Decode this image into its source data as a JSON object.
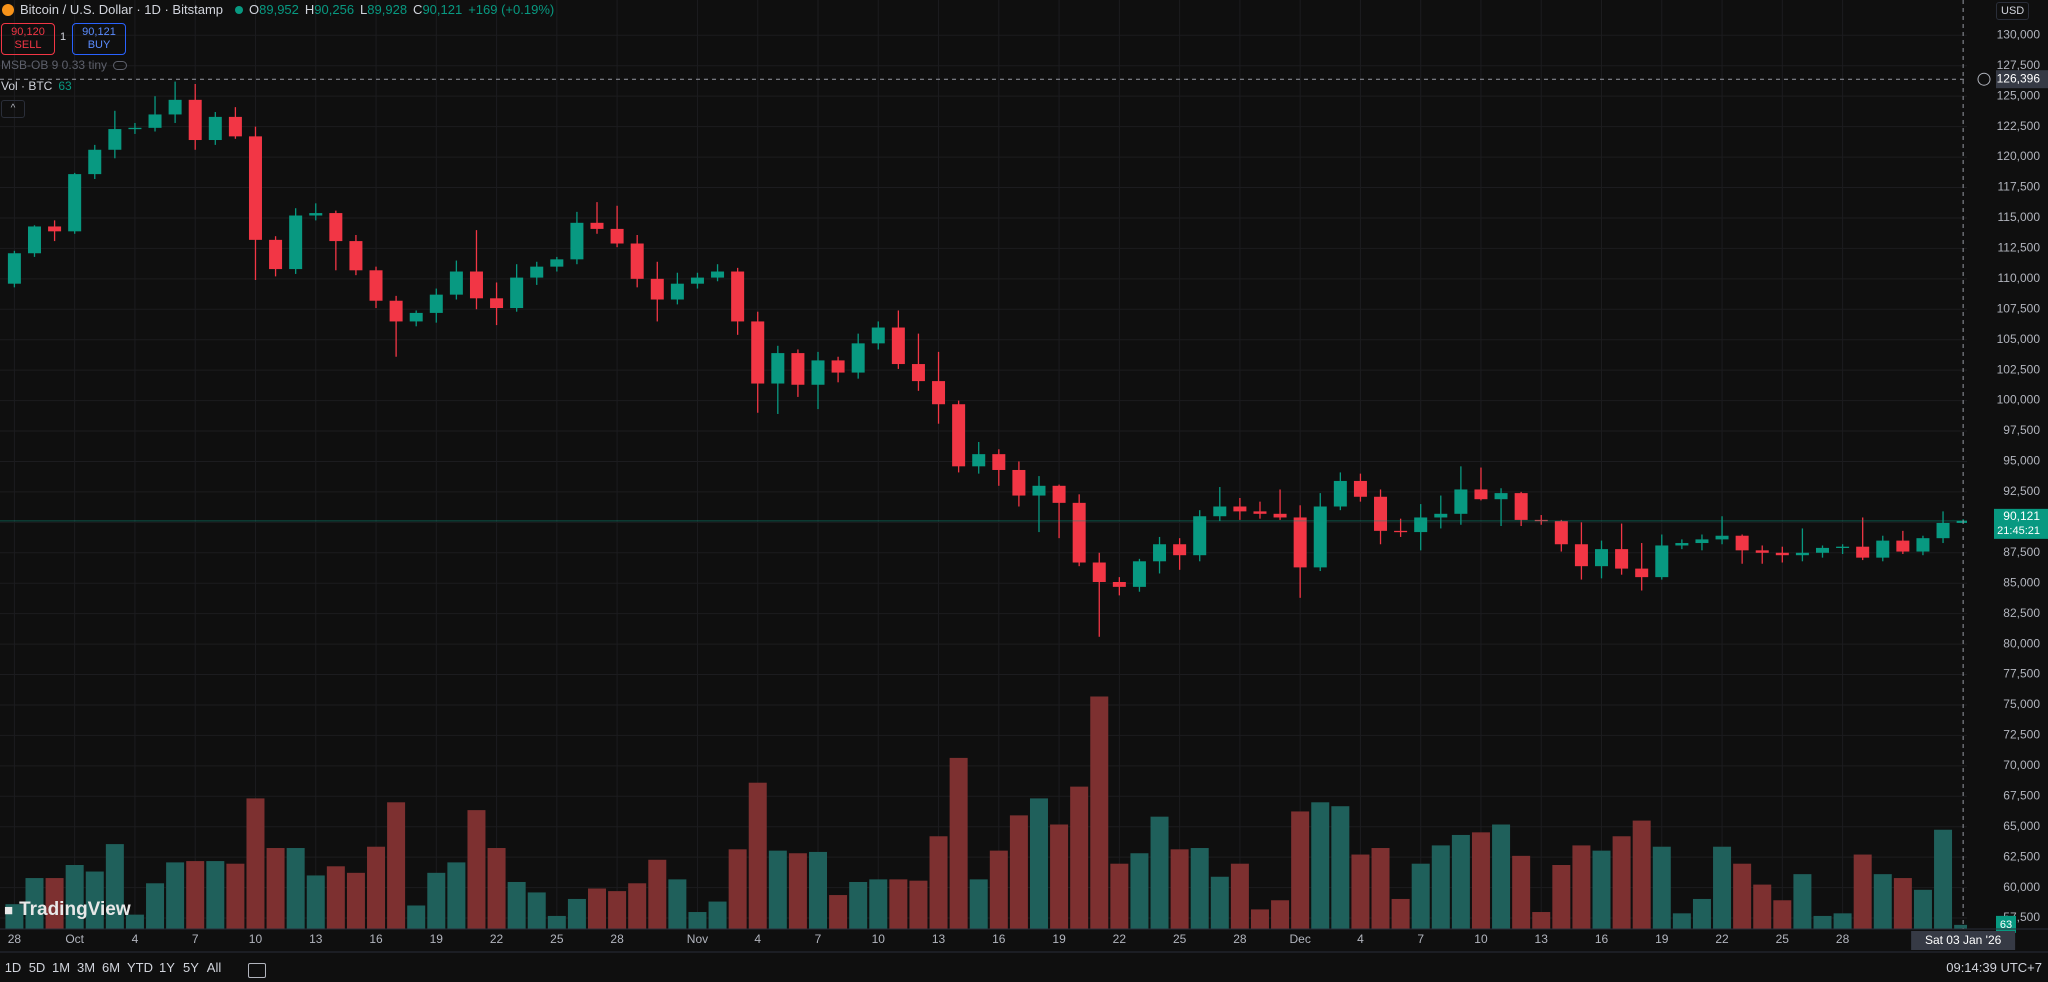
{
  "header": {
    "title": "Bitcoin / U.S. Dollar · 1D · Bitstamp",
    "ohlc": [
      {
        "key": "O",
        "value": "89,952"
      },
      {
        "key": "H",
        "value": "90,256"
      },
      {
        "key": "L",
        "value": "89,928"
      },
      {
        "key": "C",
        "value": "90,121"
      }
    ],
    "change": "+169 (+0.19%)",
    "sell_price": "90,120",
    "sell": "SELL",
    "quantity": "1",
    "buy_price": "90,121",
    "buy": "BUY",
    "indicator": "MSB-OB 9 0.33 tiny",
    "volume_label": "Vol · BTC",
    "currency": "USD",
    "watermark": "TradingView"
  },
  "toolbar": {
    "ranges": [
      "1D",
      "5D",
      "1M",
      "3M",
      "6M",
      "YTD",
      "1Y",
      "5Y",
      "All"
    ],
    "clock": "09:14:39 UTC+7"
  },
  "chart_data": {
    "type": "candlestick",
    "categories": [
      "28",
      null,
      null,
      "Oct",
      null,
      null,
      "4",
      null,
      null,
      "7",
      null,
      null,
      "10",
      null,
      null,
      "13",
      null,
      null,
      "16",
      null,
      null,
      "19",
      null,
      null,
      "22",
      null,
      null,
      "25",
      null,
      null,
      "28",
      null,
      null,
      null,
      "Nov",
      null,
      null,
      "4",
      null,
      null,
      "7",
      null,
      null,
      "10",
      null,
      null,
      "13",
      null,
      null,
      "16",
      null,
      null,
      "19",
      null,
      null,
      "22",
      null,
      null,
      "25",
      null,
      null,
      "28",
      null,
      null,
      "Dec",
      null,
      null,
      "4",
      null,
      null,
      "7",
      null,
      null,
      "10",
      null,
      null,
      "13",
      null,
      null,
      "16",
      null,
      null,
      "19",
      null,
      null,
      "22",
      null,
      null,
      "25",
      null,
      null,
      "28",
      null,
      null,
      null,
      null,
      null,
      null
    ],
    "open": [
      109600,
      112100,
      114300,
      113900,
      118600,
      120600,
      122300,
      122400,
      123500,
      124700,
      121400,
      123300,
      121700,
      113200,
      110800,
      115200,
      115400,
      113100,
      110700,
      108200,
      106500,
      107200,
      108700,
      110600,
      108400,
      107600,
      110100,
      111000,
      111600,
      114600,
      114100,
      112900,
      110000,
      108300,
      109600,
      110100,
      110600,
      106500,
      101400,
      103900,
      101300,
      103300,
      102300,
      104700,
      106000,
      103000,
      101600,
      99700,
      94600,
      95600,
      94300,
      92200,
      93000,
      91600,
      86700,
      85100,
      84700,
      86800,
      88200,
      87300,
      90500,
      91300,
      90900,
      90700,
      90400,
      86300,
      91300,
      93400,
      92100,
      89300,
      89200,
      90400,
      90700,
      92700,
      91900,
      92400,
      90200,
      90100,
      88200,
      86400,
      87800,
      86200,
      85500,
      88100,
      88300,
      88600,
      88900,
      87700,
      87500,
      87300,
      87500,
      87900,
      88000,
      87100,
      88500,
      87600,
      88700,
      89952
    ],
    "high": [
      112300,
      114400,
      114800,
      118700,
      121000,
      123800,
      122800,
      125000,
      126200,
      126000,
      123700,
      124100,
      122500,
      113500,
      115800,
      116200,
      115600,
      113600,
      111000,
      108600,
      107400,
      109200,
      111500,
      114000,
      109700,
      111200,
      111400,
      111800,
      115500,
      116300,
      116000,
      113600,
      111400,
      110500,
      110500,
      111200,
      110900,
      107300,
      104500,
      104200,
      104000,
      103600,
      105500,
      106500,
      107400,
      105500,
      104000,
      100000,
      96600,
      96000,
      95000,
      93800,
      93100,
      92300,
      87500,
      85500,
      87000,
      88800,
      88700,
      91000,
      92900,
      92000,
      91700,
      92700,
      91400,
      92400,
      94100,
      94000,
      92700,
      90300,
      91500,
      92200,
      94600,
      94500,
      92800,
      92500,
      90600,
      90200,
      90000,
      88500,
      89900,
      88300,
      89000,
      88600,
      89000,
      90500,
      89000,
      88100,
      88000,
      89500,
      88100,
      88200,
      90400,
      88900,
      89300,
      88900,
      90900,
      90256
    ],
    "low": [
      109300,
      111800,
      113100,
      113700,
      118200,
      119900,
      121900,
      122100,
      122800,
      120600,
      121000,
      121500,
      109900,
      110200,
      110400,
      114800,
      110700,
      110300,
      107600,
      103600,
      106100,
      106400,
      108300,
      107500,
      106200,
      107300,
      109500,
      110600,
      111200,
      113700,
      112600,
      109300,
      106500,
      107900,
      109200,
      109800,
      105400,
      99000,
      98900,
      100300,
      99300,
      101500,
      101800,
      104200,
      102600,
      100800,
      98100,
      94100,
      94000,
      93000,
      91300,
      89200,
      88700,
      86400,
      80600,
      84000,
      84300,
      85800,
      86100,
      86800,
      90100,
      90200,
      90300,
      90200,
      83800,
      86000,
      91000,
      91700,
      88200,
      88800,
      87700,
      89500,
      89800,
      91800,
      89700,
      89700,
      89800,
      87600,
      85300,
      85400,
      85700,
      84400,
      85300,
      87800,
      87700,
      88200,
      86600,
      86600,
      86700,
      86800,
      87100,
      87400,
      86900,
      86800,
      87400,
      87300,
      88300,
      89928
    ],
    "close": [
      112100,
      114300,
      113900,
      118600,
      120600,
      122300,
      122400,
      123500,
      124700,
      121400,
      123300,
      121700,
      113200,
      110800,
      115200,
      115400,
      113100,
      110700,
      108200,
      106500,
      107200,
      108700,
      110600,
      108400,
      107600,
      110100,
      111000,
      111600,
      114600,
      114100,
      112900,
      110000,
      108300,
      109600,
      110100,
      110600,
      106500,
      101400,
      103900,
      101300,
      103300,
      102300,
      104700,
      106000,
      103000,
      101600,
      99700,
      94600,
      95600,
      94300,
      92200,
      93000,
      91600,
      86700,
      85100,
      84700,
      86800,
      88200,
      87300,
      90500,
      91300,
      90900,
      90700,
      90400,
      86300,
      91300,
      93400,
      92100,
      89300,
      89200,
      90400,
      90700,
      92700,
      91900,
      92400,
      90200,
      90100,
      88200,
      86400,
      87800,
      86200,
      85500,
      88100,
      88300,
      88600,
      88900,
      87700,
      87500,
      87300,
      87500,
      87900,
      88000,
      87100,
      88500,
      87600,
      88700,
      89952,
      90121
    ],
    "volume": [
      380,
      780,
      780,
      980,
      880,
      1300,
      220,
      700,
      1020,
      1040,
      1040,
      1000,
      2000,
      1240,
      1240,
      820,
      960,
      860,
      1260,
      1940,
      360,
      860,
      1020,
      1820,
      1240,
      720,
      560,
      200,
      460,
      620,
      580,
      700,
      1060,
      760,
      260,
      420,
      1220,
      2240,
      1200,
      1160,
      1180,
      520,
      720,
      760,
      760,
      740,
      1420,
      2620,
      760,
      1200,
      1740,
      2000,
      1600,
      2180,
      3560,
      1000,
      1160,
      1720,
      1220,
      1240,
      800,
      1000,
      300,
      440,
      1800,
      1940,
      1880,
      1140,
      1240,
      460,
      1000,
      1280,
      1440,
      1480,
      1600,
      1120,
      260,
      980,
      1280,
      1200,
      1420,
      1660,
      1260,
      240,
      460,
      1260,
      1000,
      680,
      440,
      840,
      200,
      240,
      1140,
      840,
      780,
      600,
      1520,
      63
    ],
    "up_color": "#089981",
    "down_color": "#f23645",
    "volume_up_color": "#1f605b",
    "volume_down_color": "#7d3030",
    "ylim": [
      56600,
      132900
    ],
    "yticks": [
      {
        "value": 130000,
        "label": "130,000"
      },
      {
        "value": 127500,
        "label": "127,500"
      },
      {
        "value": 125000,
        "label": "125,000"
      },
      {
        "value": 122500,
        "label": "122,500"
      },
      {
        "value": 120000,
        "label": "120,000"
      },
      {
        "value": 117500,
        "label": "117,500"
      },
      {
        "value": 115000,
        "label": "115,000"
      },
      {
        "value": 112500,
        "label": "112,500"
      },
      {
        "value": 110000,
        "label": "110,000"
      },
      {
        "value": 107500,
        "label": "107,500"
      },
      {
        "value": 105000,
        "label": "105,000"
      },
      {
        "value": 102500,
        "label": "102,500"
      },
      {
        "value": 100000,
        "label": "100,000"
      },
      {
        "value": 97500,
        "label": "97,500"
      },
      {
        "value": 95000,
        "label": "95,000"
      },
      {
        "value": 92500,
        "label": "92,500"
      },
      {
        "value": 90000,
        "label": "90,000"
      },
      {
        "value": 87500,
        "label": "87,500"
      },
      {
        "value": 85000,
        "label": "85,000"
      },
      {
        "value": 82500,
        "label": "82,500"
      },
      {
        "value": 80000,
        "label": "80,000"
      },
      {
        "value": 77500,
        "label": "77,500"
      },
      {
        "value": 75000,
        "label": "75,000"
      },
      {
        "value": 72500,
        "label": "72,500"
      },
      {
        "value": 70000,
        "label": "70,000"
      },
      {
        "value": 67500,
        "label": "67,500"
      },
      {
        "value": 65000,
        "label": "65,000"
      },
      {
        "value": 62500,
        "label": "62,500"
      },
      {
        "value": 60000,
        "label": "60,000"
      },
      {
        "value": 57500,
        "label": "57,500"
      }
    ],
    "grid": true,
    "last_price_label": "90,121",
    "countdown": "21:45:21",
    "crosshair": {
      "value": 126396,
      "label": "126,396"
    },
    "crosshair_date": "Sat 03 Jan '26"
  }
}
